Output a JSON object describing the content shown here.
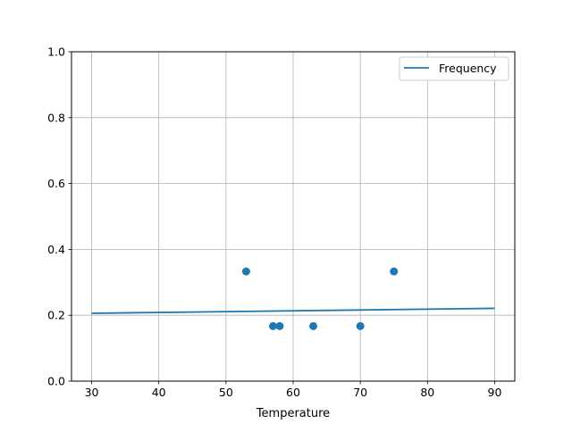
{
  "chart_data": {
    "type": "scatter",
    "title": "",
    "xlabel": "Temperature",
    "ylabel": "",
    "xlim": [
      27,
      93
    ],
    "ylim": [
      0,
      1.0
    ],
    "xticks": [
      30,
      40,
      50,
      60,
      70,
      80,
      90
    ],
    "yticks": [
      0.0,
      0.2,
      0.4,
      0.6,
      0.8,
      1.0
    ],
    "xtick_labels": [
      "30",
      "40",
      "50",
      "60",
      "70",
      "80",
      "90"
    ],
    "ytick_labels": [
      "0.0",
      "0.2",
      "0.4",
      "0.6",
      "0.8",
      "1.0"
    ],
    "grid": true,
    "legend_position": "top-right",
    "color": "#1f77b4",
    "points": [
      {
        "x": 53,
        "y": 0.333
      },
      {
        "x": 57,
        "y": 0.167
      },
      {
        "x": 58,
        "y": 0.167
      },
      {
        "x": 63,
        "y": 0.167
      },
      {
        "x": 70,
        "y": 0.167
      },
      {
        "x": 75,
        "y": 0.333
      }
    ],
    "line": {
      "name": "Frequency",
      "x": [
        30,
        90
      ],
      "y": [
        0.206,
        0.221
      ]
    }
  }
}
